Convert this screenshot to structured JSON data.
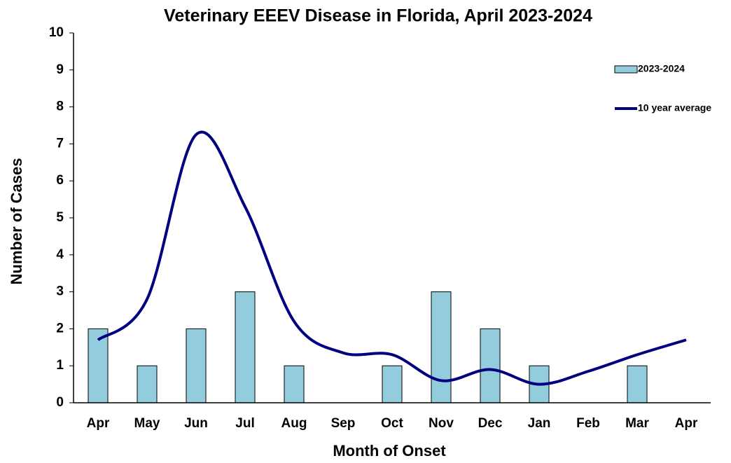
{
  "chart_data": {
    "type": "bar_line",
    "title": "Veterinary EEEV Disease in Florida, April 2023-2024",
    "x_label": "Month of Onset",
    "y_label": "Number of Cases",
    "categories": [
      "Apr",
      "May",
      "Jun",
      "Jul",
      "Aug",
      "Sep",
      "Oct",
      "Nov",
      "Dec",
      "Jan",
      "Feb",
      "Mar",
      "Apr"
    ],
    "series": [
      {
        "name": "2023-2024",
        "type": "bar",
        "color": "#93cddd",
        "values": [
          2,
          1,
          2,
          3,
          1,
          0,
          1,
          3,
          2,
          1,
          0,
          1,
          null
        ]
      },
      {
        "name": "10 year average",
        "type": "line",
        "color": "#000080",
        "values": [
          1.7,
          2.8,
          7.25,
          5.3,
          2.2,
          1.35,
          1.3,
          0.6,
          0.9,
          0.5,
          0.85,
          1.3,
          1.7
        ]
      }
    ],
    "ylim": [
      0,
      10
    ],
    "yticks": [
      0,
      1,
      2,
      3,
      4,
      5,
      6,
      7,
      8,
      9,
      10
    ],
    "legend": "upper right",
    "grid": false
  }
}
